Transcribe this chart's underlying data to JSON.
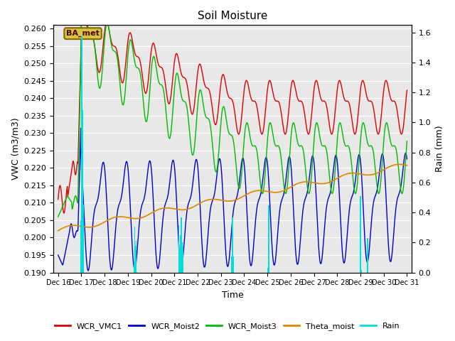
{
  "title": "Soil Moisture",
  "xlabel": "Time",
  "ylabel_left": "VWC (m3/m3)",
  "ylabel_right": "Rain (mm)",
  "ylim_left": [
    0.19,
    0.261
  ],
  "ylim_right": [
    0.0,
    1.65
  ],
  "yticks_left": [
    0.19,
    0.195,
    0.2,
    0.205,
    0.21,
    0.215,
    0.22,
    0.225,
    0.23,
    0.235,
    0.24,
    0.245,
    0.25,
    0.255,
    0.26
  ],
  "yticks_right": [
    0.0,
    0.2,
    0.4,
    0.6,
    0.8,
    1.0,
    1.2,
    1.4,
    1.6
  ],
  "xtick_labels": [
    "Dec 16",
    "Dec 17",
    "Dec 18",
    "Dec 19",
    "Dec 20",
    "Dec 21",
    "Dec 22",
    "Dec 23",
    "Dec 24",
    "Dec 25",
    "Dec 26",
    "Dec 27",
    "Dec 28",
    "Dec 29",
    "Dec 30",
    "Dec 31"
  ],
  "num_points": 720,
  "background_color": "#e8e8e8",
  "colors": {
    "WCR_VMC1": "#dd0000",
    "WCR_Moist2": "#0000cc",
    "WCR_Moist3": "#00bb00",
    "Theta_moist": "#dd8800",
    "Rain": "#00dddd"
  },
  "annotation_text": "BA_met",
  "figsize": [
    6.4,
    4.8
  ],
  "dpi": 100
}
